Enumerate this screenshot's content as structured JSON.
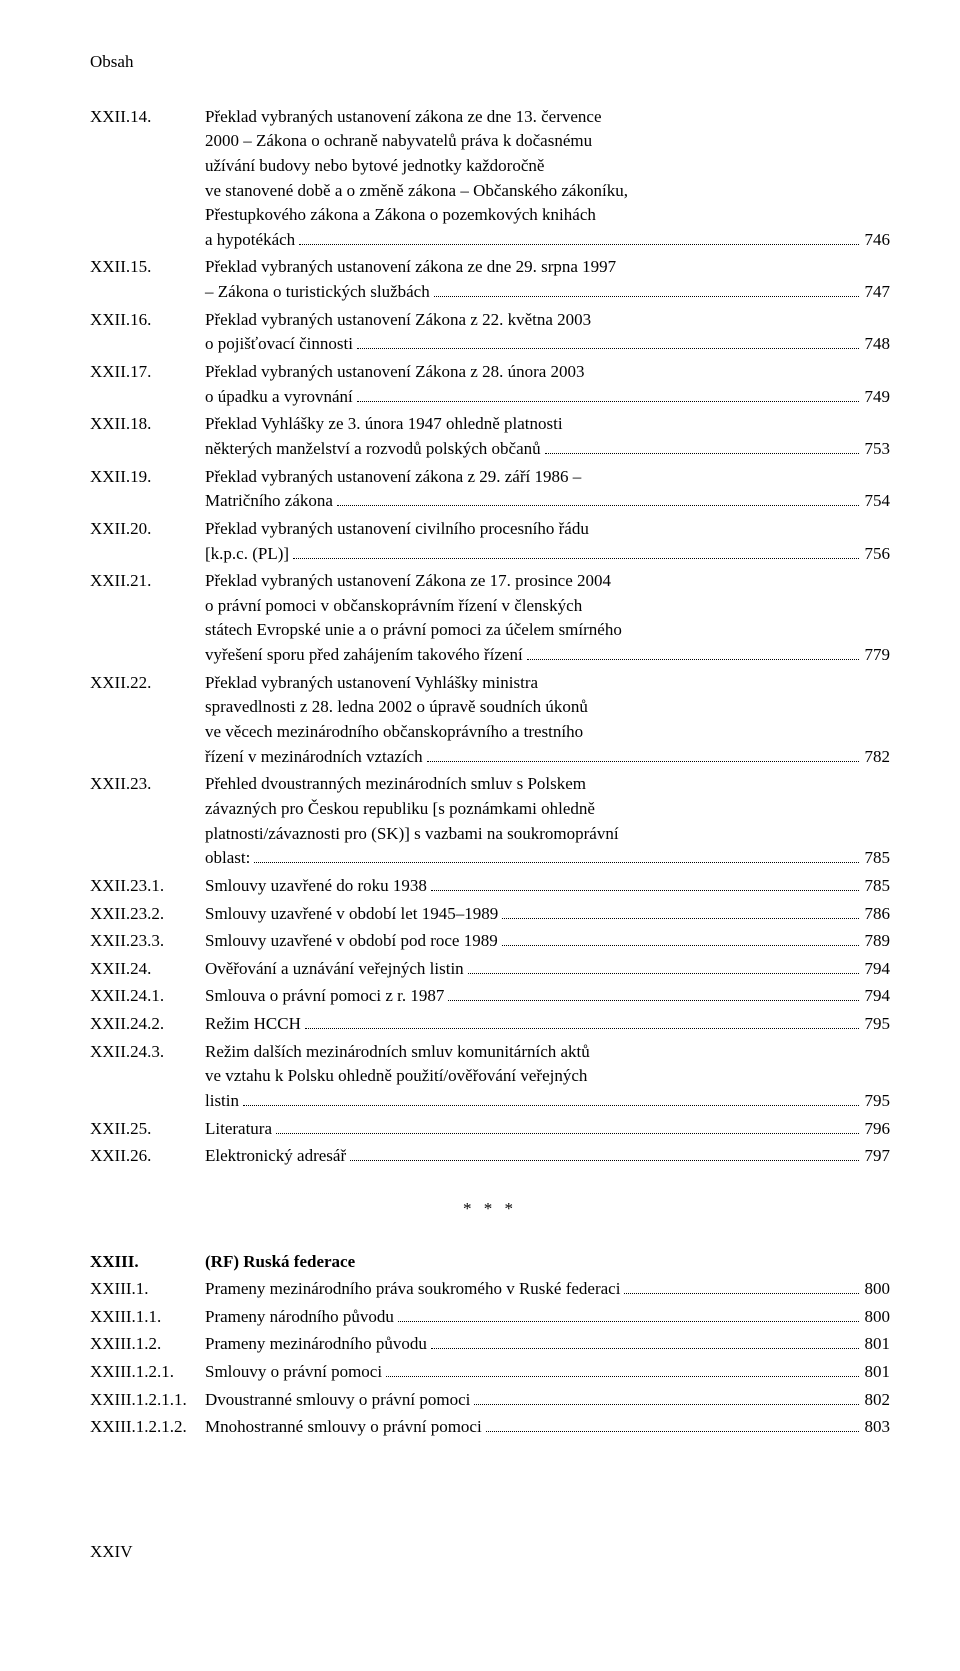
{
  "header": "Obsah",
  "separator": "* * *",
  "footer_roman": "XXIV",
  "entries": [
    {
      "num": "XXII.14.",
      "lines": [
        "Překlad vybraných ustanovení zákona ze dne 13. července",
        "2000 – Zákona o ochraně nabyvatelů práva k dočasnému",
        "užívání budovy nebo bytové jednotky každoročně",
        "ve stanovené době a o změně zákona – Občanského zákoníku,",
        "Přestupkového zákona a Zákona o pozemkových knihách"
      ],
      "last": "a hypotékách",
      "page": "746"
    },
    {
      "num": "XXII.15.",
      "lines": [
        "Překlad vybraných ustanovení zákona ze dne 29. srpna 1997"
      ],
      "last": "– Zákona o turistických službách",
      "page": "747"
    },
    {
      "num": "XXII.16.",
      "lines": [
        "Překlad vybraných ustanovení Zákona z 22. května 2003"
      ],
      "last": "o pojišťovací činnosti",
      "page": "748"
    },
    {
      "num": "XXII.17.",
      "lines": [
        "Překlad vybraných ustanovení Zákona z 28. února 2003"
      ],
      "last": "o úpadku a vyrovnání",
      "page": "749"
    },
    {
      "num": "XXII.18.",
      "lines": [
        "Překlad Vyhlášky ze 3. února 1947 ohledně platnosti"
      ],
      "last": "některých manželství a rozvodů polských občanů",
      "page": "753"
    },
    {
      "num": "XXII.19.",
      "lines": [
        "Překlad vybraných ustanovení zákona z 29. září 1986 –"
      ],
      "last": "Matričního zákona",
      "page": "754"
    },
    {
      "num": "XXII.20.",
      "lines": [
        "Překlad vybraných ustanovení civilního procesního řádu"
      ],
      "last": "[k.p.c. (PL)]",
      "page": "756"
    },
    {
      "num": "XXII.21.",
      "lines": [
        "Překlad vybraných ustanovení Zákona ze 17. prosince 2004",
        "o právní pomoci v občanskoprávním řízení v členských",
        "státech Evropské unie a o právní pomoci za účelem smírného"
      ],
      "last": "vyřešení sporu před zahájením takového řízení",
      "page": "779"
    },
    {
      "num": "XXII.22.",
      "lines": [
        "Překlad vybraných ustanovení Vyhlášky ministra",
        "spravedlnosti z 28. ledna 2002 o úpravě soudních úkonů",
        "ve věcech mezinárodního občanskoprávního a trestního"
      ],
      "last": "řízení v mezinárodních vztazích",
      "page": "782"
    },
    {
      "num": "XXII.23.",
      "lines": [
        "Přehled dvoustranných mezinárodních smluv s Polskem",
        "závazných pro Českou republiku [s poznámkami ohledně",
        "platnosti/závaznosti pro (SK)] s vazbami na soukromoprávní"
      ],
      "last": "oblast:",
      "page": "785"
    },
    {
      "num": "XXII.23.1.",
      "lines": [],
      "last": "Smlouvy uzavřené do roku 1938",
      "page": "785"
    },
    {
      "num": "XXII.23.2.",
      "lines": [],
      "last": "Smlouvy uzavřené v období let 1945–1989",
      "page": "786"
    },
    {
      "num": "XXII.23.3.",
      "lines": [],
      "last": "Smlouvy uzavřené v období pod roce 1989",
      "page": "789"
    },
    {
      "num": "XXII.24.",
      "lines": [],
      "last": "Ověřování a uznávání veřejných listin",
      "page": "794"
    },
    {
      "num": "XXII.24.1.",
      "lines": [],
      "last": "Smlouva o právní pomoci z r. 1987",
      "page": "794"
    },
    {
      "num": "XXII.24.2.",
      "lines": [],
      "last": "Režim HCCH",
      "page": "795"
    },
    {
      "num": "XXII.24.3.",
      "lines": [
        "Režim dalších mezinárodních smluv komunitárních aktů",
        "ve vztahu k Polsku ohledně použití/ověřování veřejných"
      ],
      "last": "listin",
      "page": "795"
    },
    {
      "num": "XXII.25.",
      "lines": [],
      "last": "Literatura",
      "page": "796"
    },
    {
      "num": "XXII.26.",
      "lines": [],
      "last": "Elektronický adresář",
      "page": "797"
    }
  ],
  "section2_num": "XXIII.",
  "section2_title": "(RF) Ruská federace",
  "entries2": [
    {
      "num": "XXIII.1.",
      "lines": [],
      "last": "Prameny mezinárodního práva soukromého v Ruské federaci",
      "page": "800"
    },
    {
      "num": "XXIII.1.1.",
      "lines": [],
      "last": "Prameny národního původu",
      "page": "800"
    },
    {
      "num": "XXIII.1.2.",
      "lines": [],
      "last": "Prameny mezinárodního původu",
      "page": "801"
    },
    {
      "num": "XXIII.1.2.1.",
      "lines": [],
      "last": "Smlouvy o právní pomoci",
      "page": "801"
    },
    {
      "num": "XXIII.1.2.1.1.",
      "lines": [],
      "last": "Dvoustranné smlouvy o právní pomoci",
      "page": "802"
    },
    {
      "num": "XXIII.1.2.1.2.",
      "lines": [],
      "last": "Mnohostranné smlouvy o právní pomoci",
      "page": "803"
    }
  ]
}
